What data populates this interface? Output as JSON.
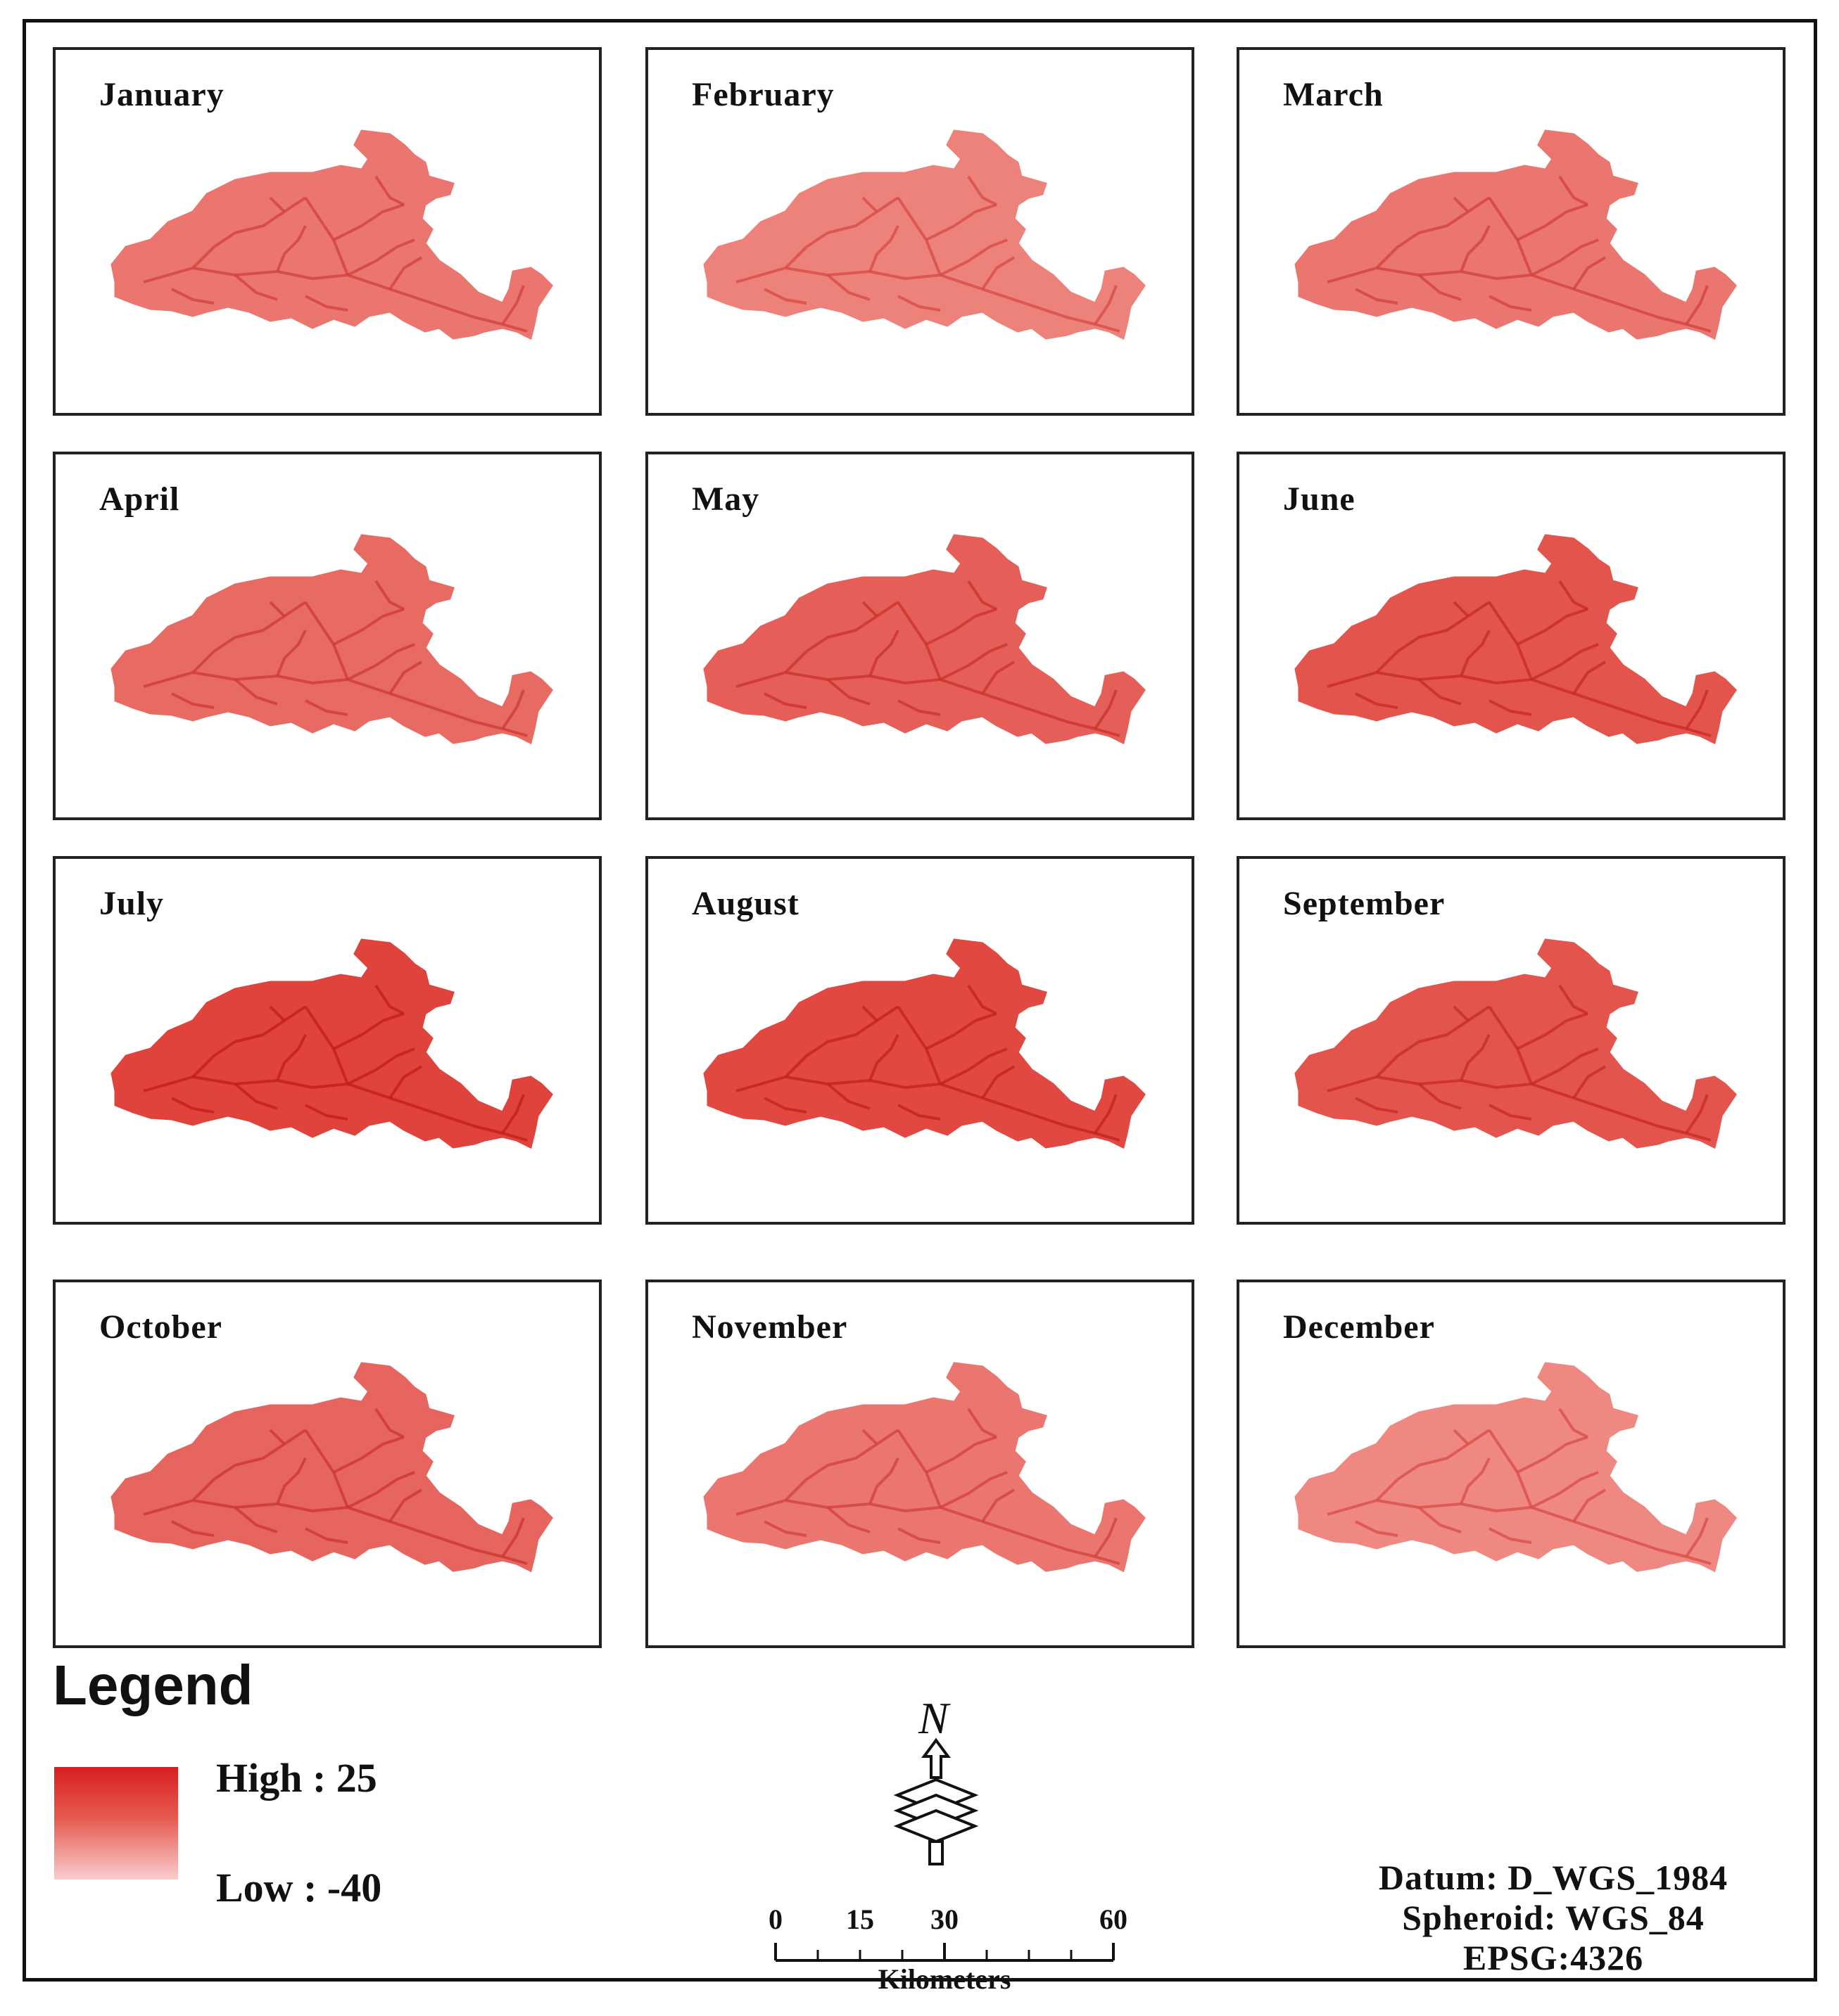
{
  "panels": [
    {
      "month": "January",
      "intensity": 0.45
    },
    {
      "month": "February",
      "intensity": 0.35
    },
    {
      "month": "March",
      "intensity": 0.45
    },
    {
      "month": "April",
      "intensity": 0.55
    },
    {
      "month": "May",
      "intensity": 0.65
    },
    {
      "month": "June",
      "intensity": 0.75
    },
    {
      "month": "July",
      "intensity": 0.9
    },
    {
      "month": "August",
      "intensity": 0.85
    },
    {
      "month": "September",
      "intensity": 0.75
    },
    {
      "month": "October",
      "intensity": 0.6
    },
    {
      "month": "November",
      "intensity": 0.45
    },
    {
      "month": "December",
      "intensity": 0.3
    }
  ],
  "legend": {
    "title": "Legend",
    "high_label": "High : 25",
    "low_label": "Low : -40",
    "high_color": "#d61f1f",
    "low_color": "#f8cccc"
  },
  "north_arrow": {
    "letter": "N"
  },
  "scale": {
    "ticks": [
      "0",
      "15",
      "30",
      "60"
    ],
    "tick_values": [
      0,
      15,
      30,
      60
    ],
    "unit": "Kilometers"
  },
  "projection": {
    "datum": "Datum: D_WGS_1984",
    "spheroid": "Spheroid: WGS_84",
    "epsg": "EPSG:4326"
  }
}
